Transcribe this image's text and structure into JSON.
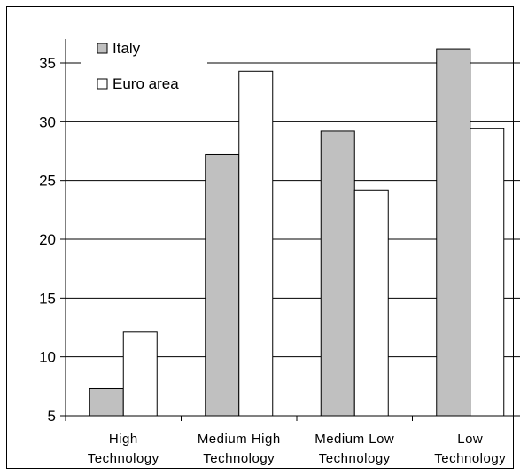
{
  "chart_data": {
    "type": "bar",
    "categories": [
      "High Technology",
      "Medium High Technology",
      "Medium Low Technology",
      "Low Technology"
    ],
    "category_lines": [
      [
        "High",
        "Technology"
      ],
      [
        "Medium High",
        "Technology"
      ],
      [
        "Medium Low",
        "Technology"
      ],
      [
        "Low",
        "Technology"
      ]
    ],
    "series": [
      {
        "name": "Italy",
        "values": [
          7.3,
          27.2,
          29.2,
          36.2
        ],
        "color": "#c0c0c0"
      },
      {
        "name": "Euro area",
        "values": [
          12.1,
          34.3,
          24.2,
          29.4
        ],
        "color": "#ffffff"
      }
    ],
    "ylim": [
      5,
      35
    ],
    "yticks": [
      5,
      10,
      15,
      20,
      25,
      30,
      35
    ],
    "grid": true,
    "legend_position": "top-left",
    "title": "",
    "xlabel": "",
    "ylabel": ""
  }
}
